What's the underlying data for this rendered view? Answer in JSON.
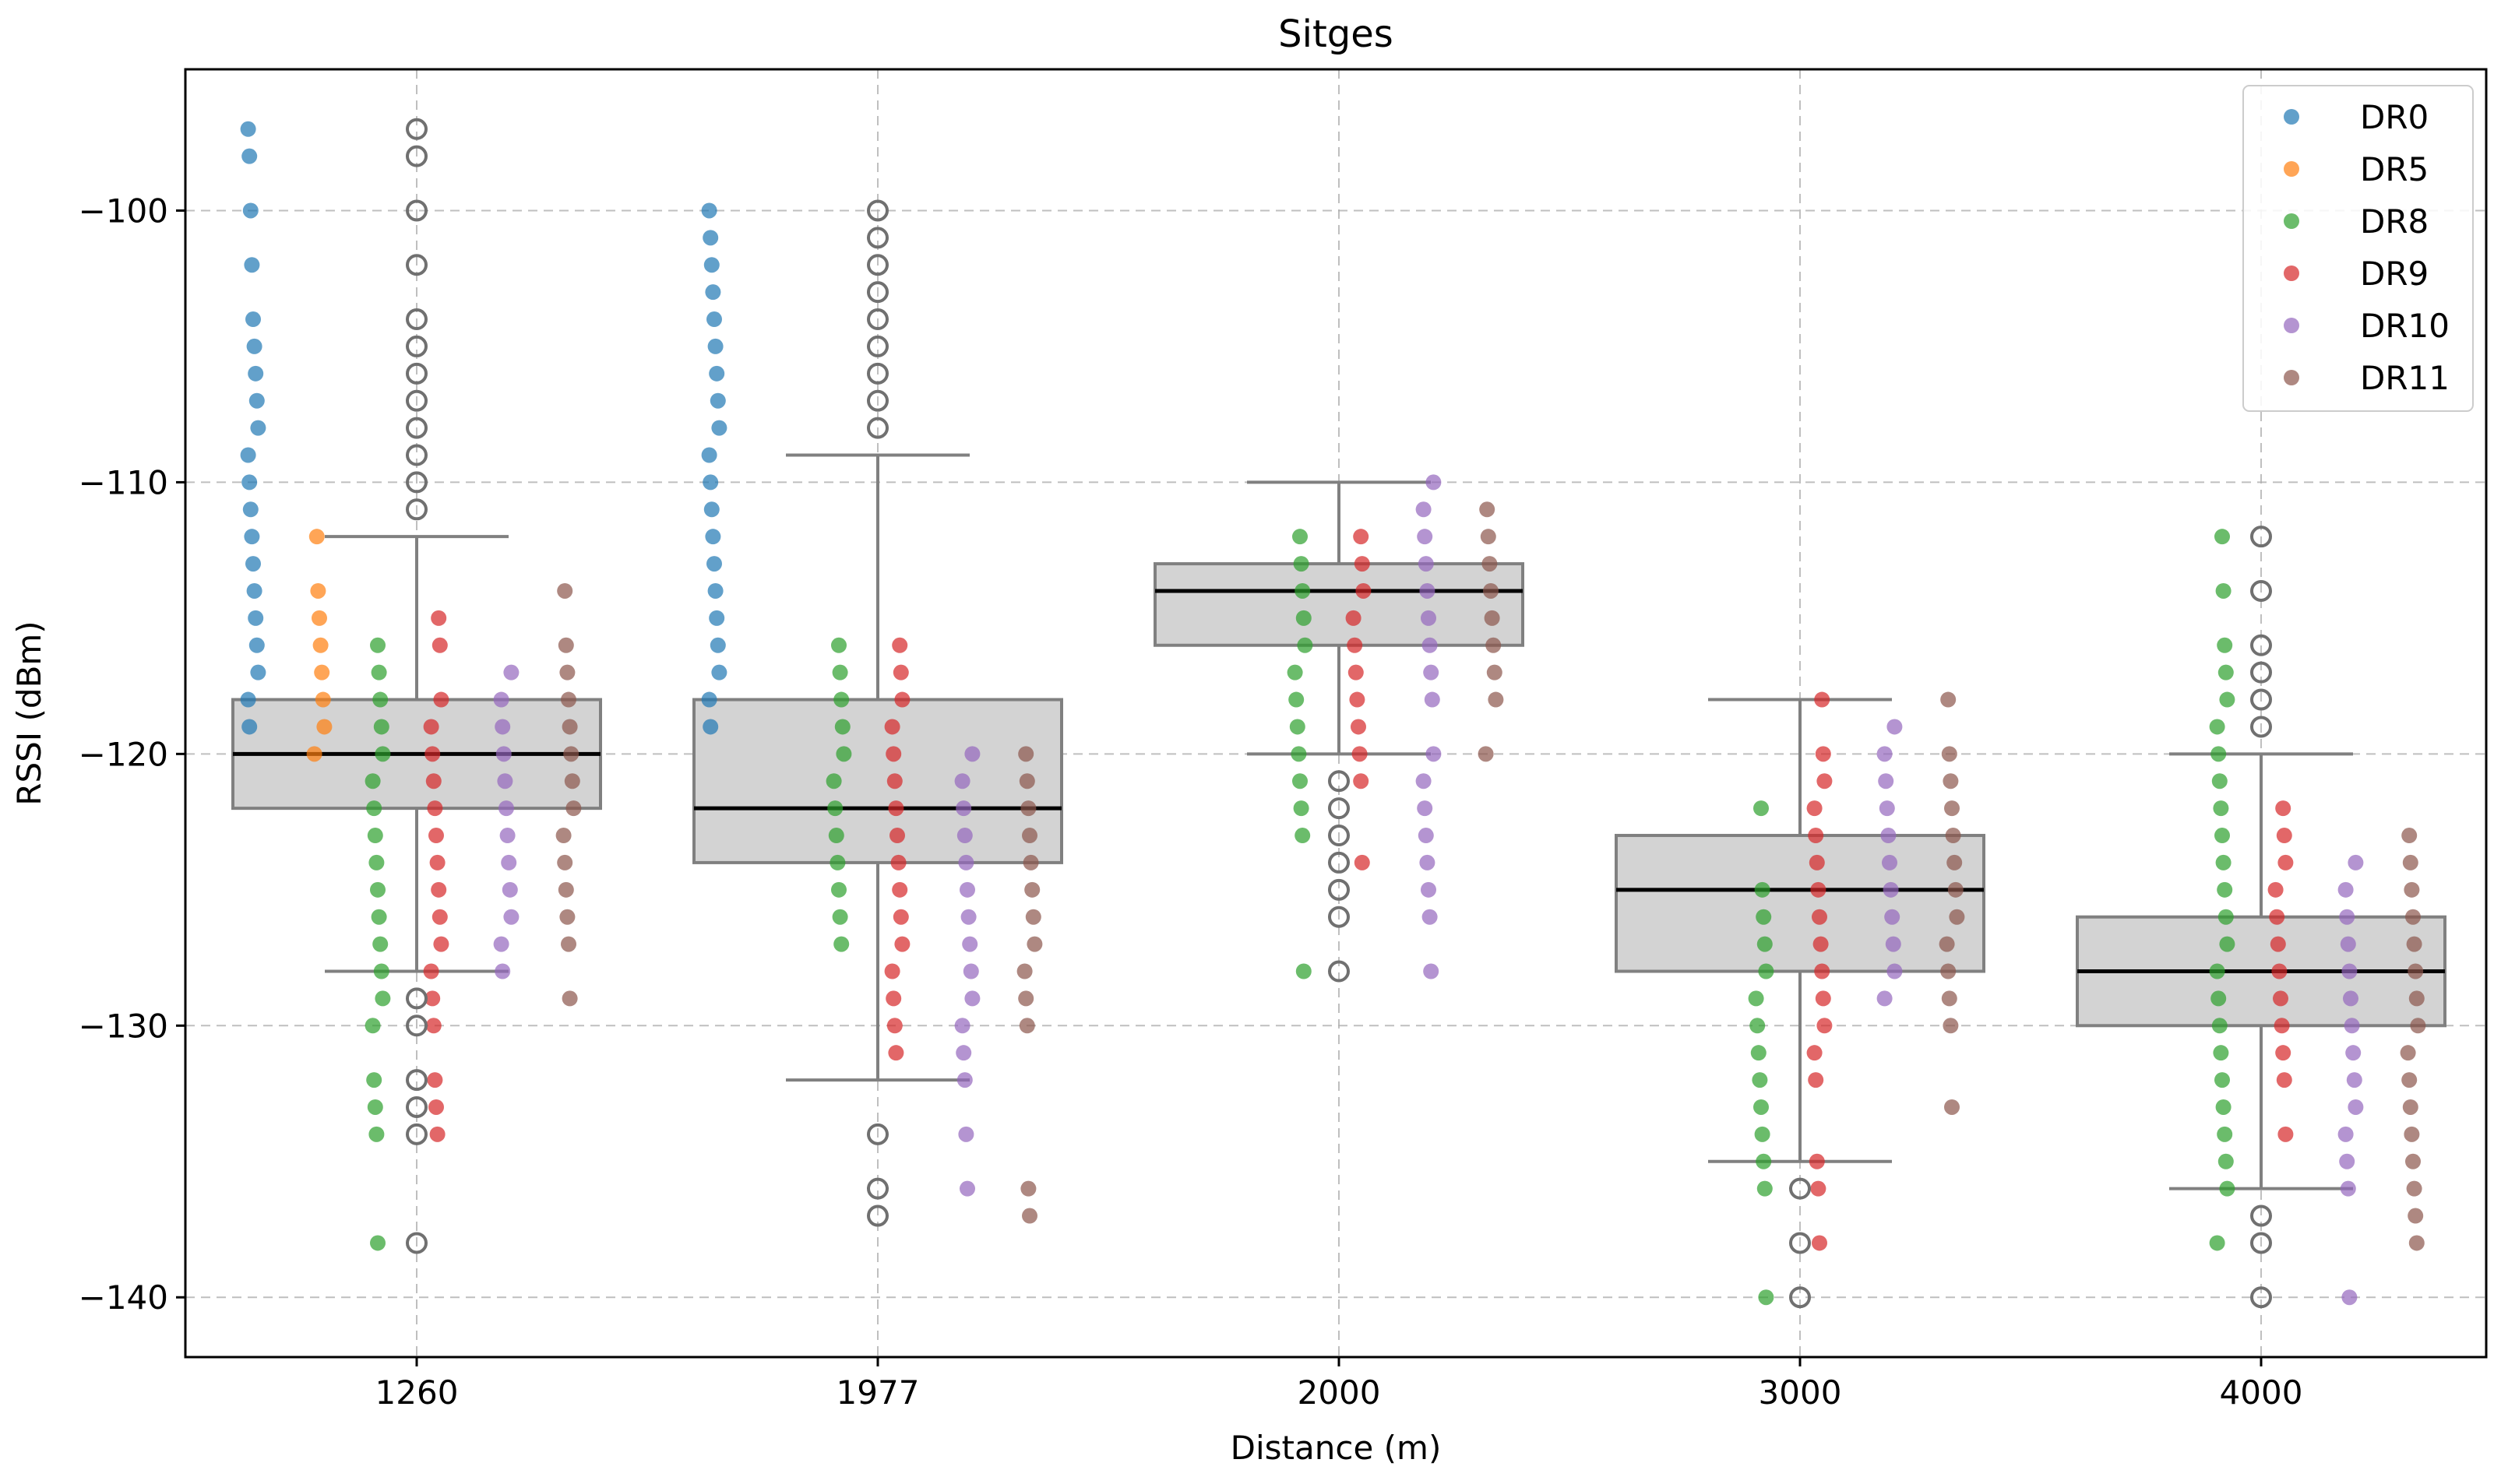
{
  "chart_data": {
    "type": "box+strip",
    "title": "Sitges",
    "xlabel": "Distance (m)",
    "ylabel": "RSSI (dBm)",
    "ylim": [
      -142.2,
      -94.8
    ],
    "y_ticks": [
      -100,
      -110,
      -120,
      -130,
      -140
    ],
    "y_tick_labels": [
      "−100",
      "−110",
      "−120",
      "−130",
      "−140"
    ],
    "grid": true,
    "legend_position": "top-right",
    "categories": [
      "1260",
      "1977",
      "2000",
      "3000",
      "4000"
    ],
    "series_names": [
      "DR0",
      "DR5",
      "DR8",
      "DR9",
      "DR10",
      "DR11"
    ],
    "series_colors": [
      "#1f77b4",
      "#ff7f0e",
      "#2ca02c",
      "#d62728",
      "#9467bd",
      "#8c564b"
    ],
    "box_style": {
      "fill": "#d3d3d3",
      "edge": "#808080",
      "median": "#000000"
    },
    "boxes": [
      {
        "category": "1260",
        "q1": -122,
        "median": -120,
        "q3": -118,
        "whisker_low": -128,
        "whisker_high": -112,
        "outliers": [
          -97,
          -98,
          -100,
          -102,
          -104,
          -105,
          -106,
          -107,
          -108,
          -109,
          -110,
          -111,
          -129,
          -130,
          -132,
          -133,
          -134,
          -138
        ]
      },
      {
        "category": "1977",
        "q1": -124,
        "median": -122,
        "q3": -118,
        "whisker_low": -132,
        "whisker_high": -109,
        "outliers": [
          -100,
          -101,
          -102,
          -103,
          -104,
          -105,
          -106,
          -107,
          -108,
          -134,
          -136,
          -137
        ]
      },
      {
        "category": "2000",
        "q1": -116,
        "median": -114,
        "q3": -113,
        "whisker_low": -120,
        "whisker_high": -110,
        "outliers": [
          -121,
          -122,
          -123,
          -124,
          -125,
          -126,
          -128
        ]
      },
      {
        "category": "3000",
        "q1": -128,
        "median": -125,
        "q3": -123,
        "whisker_low": -135,
        "whisker_high": -118,
        "outliers": [
          -136,
          -138,
          -140
        ]
      },
      {
        "category": "4000",
        "q1": -130,
        "median": -128,
        "q3": -126,
        "whisker_low": -136,
        "whisker_high": -120,
        "outliers": [
          -112,
          -114,
          -116,
          -117,
          -118,
          -119,
          -137,
          -138,
          -140
        ]
      }
    ],
    "strips": [
      {
        "category": "1260",
        "series": [
          {
            "name": "DR0",
            "values": [
              -97,
              -98,
              -100,
              -102,
              -104,
              -105,
              -106,
              -107,
              -108,
              -109,
              -110,
              -111,
              -112,
              -113,
              -114,
              -115,
              -116,
              -117,
              -118,
              -119
            ]
          },
          {
            "name": "DR5",
            "values": [
              -112,
              -114,
              -115,
              -116,
              -117,
              -118,
              -119,
              -120
            ]
          },
          {
            "name": "DR8",
            "values": [
              -116,
              -117,
              -118,
              -119,
              -120,
              -121,
              -122,
              -123,
              -124,
              -125,
              -126,
              -127,
              -128,
              -129,
              -130,
              -132,
              -133,
              -134,
              -138
            ]
          },
          {
            "name": "DR9",
            "values": [
              -115,
              -116,
              -118,
              -119,
              -120,
              -121,
              -122,
              -123,
              -124,
              -125,
              -126,
              -127,
              -128,
              -129,
              -130,
              -132,
              -133,
              -134
            ]
          },
          {
            "name": "DR10",
            "values": [
              -117,
              -118,
              -119,
              -120,
              -121,
              -122,
              -123,
              -124,
              -125,
              -126,
              -127,
              -128
            ]
          },
          {
            "name": "DR11",
            "values": [
              -114,
              -116,
              -117,
              -118,
              -119,
              -120,
              -121,
              -122,
              -123,
              -124,
              -125,
              -126,
              -127,
              -129
            ]
          }
        ]
      },
      {
        "category": "1977",
        "series": [
          {
            "name": "DR0",
            "values": [
              -100,
              -101,
              -102,
              -103,
              -104,
              -105,
              -106,
              -107,
              -108,
              -109,
              -110,
              -111,
              -112,
              -113,
              -114,
              -115,
              -116,
              -117,
              -118,
              -119
            ]
          },
          {
            "name": "DR5",
            "values": []
          },
          {
            "name": "DR8",
            "values": [
              -116,
              -117,
              -118,
              -119,
              -120,
              -121,
              -122,
              -123,
              -124,
              -125,
              -126,
              -127
            ]
          },
          {
            "name": "DR9",
            "values": [
              -116,
              -117,
              -118,
              -119,
              -120,
              -121,
              -122,
              -123,
              -124,
              -125,
              -126,
              -127,
              -128,
              -129,
              -130,
              -131
            ]
          },
          {
            "name": "DR10",
            "values": [
              -120,
              -121,
              -122,
              -123,
              -124,
              -125,
              -126,
              -127,
              -128,
              -129,
              -130,
              -131,
              -132,
              -134,
              -136
            ]
          },
          {
            "name": "DR11",
            "values": [
              -120,
              -121,
              -122,
              -123,
              -124,
              -125,
              -126,
              -127,
              -128,
              -129,
              -130,
              -136,
              -137
            ]
          }
        ]
      },
      {
        "category": "2000",
        "series": [
          {
            "name": "DR0",
            "values": []
          },
          {
            "name": "DR5",
            "values": []
          },
          {
            "name": "DR8",
            "values": [
              -112,
              -113,
              -114,
              -115,
              -116,
              -117,
              -118,
              -119,
              -120,
              -121,
              -122,
              -123,
              -128
            ]
          },
          {
            "name": "DR9",
            "values": [
              -112,
              -113,
              -114,
              -115,
              -116,
              -117,
              -118,
              -119,
              -120,
              -121,
              -124
            ]
          },
          {
            "name": "DR10",
            "values": [
              -110,
              -111,
              -112,
              -113,
              -114,
              -115,
              -116,
              -117,
              -118,
              -120,
              -121,
              -122,
              -123,
              -124,
              -125,
              -126,
              -128
            ]
          },
          {
            "name": "DR11",
            "values": [
              -111,
              -112,
              -113,
              -114,
              -115,
              -116,
              -117,
              -118,
              -120
            ]
          }
        ]
      },
      {
        "category": "3000",
        "series": [
          {
            "name": "DR0",
            "values": []
          },
          {
            "name": "DR5",
            "values": []
          },
          {
            "name": "DR8",
            "values": [
              -122,
              -125,
              -126,
              -127,
              -128,
              -129,
              -130,
              -131,
              -132,
              -133,
              -134,
              -135,
              -136,
              -140
            ]
          },
          {
            "name": "DR9",
            "values": [
              -118,
              -120,
              -121,
              -122,
              -123,
              -124,
              -125,
              -126,
              -127,
              -128,
              -129,
              -130,
              -131,
              -132,
              -135,
              -136,
              -138
            ]
          },
          {
            "name": "DR10",
            "values": [
              -119,
              -120,
              -121,
              -122,
              -123,
              -124,
              -125,
              -126,
              -127,
              -128,
              -129
            ]
          },
          {
            "name": "DR11",
            "values": [
              -118,
              -120,
              -121,
              -122,
              -123,
              -124,
              -125,
              -126,
              -127,
              -128,
              -129,
              -130,
              -133
            ]
          }
        ]
      },
      {
        "category": "4000",
        "series": [
          {
            "name": "DR0",
            "values": []
          },
          {
            "name": "DR5",
            "values": []
          },
          {
            "name": "DR8",
            "values": [
              -112,
              -114,
              -116,
              -117,
              -118,
              -119,
              -120,
              -121,
              -122,
              -123,
              -124,
              -125,
              -126,
              -127,
              -128,
              -129,
              -130,
              -131,
              -132,
              -133,
              -134,
              -135,
              -136,
              -138
            ]
          },
          {
            "name": "DR9",
            "values": [
              -122,
              -123,
              -124,
              -125,
              -126,
              -127,
              -128,
              -129,
              -130,
              -131,
              -132,
              -134
            ]
          },
          {
            "name": "DR10",
            "values": [
              -124,
              -125,
              -126,
              -127,
              -128,
              -129,
              -130,
              -131,
              -132,
              -133,
              -134,
              -135,
              -136,
              -140
            ]
          },
          {
            "name": "DR11",
            "values": [
              -123,
              -124,
              -125,
              -126,
              -127,
              -128,
              -129,
              -130,
              -131,
              -132,
              -133,
              -134,
              -135,
              -136,
              -137,
              -138
            ]
          }
        ]
      }
    ]
  }
}
